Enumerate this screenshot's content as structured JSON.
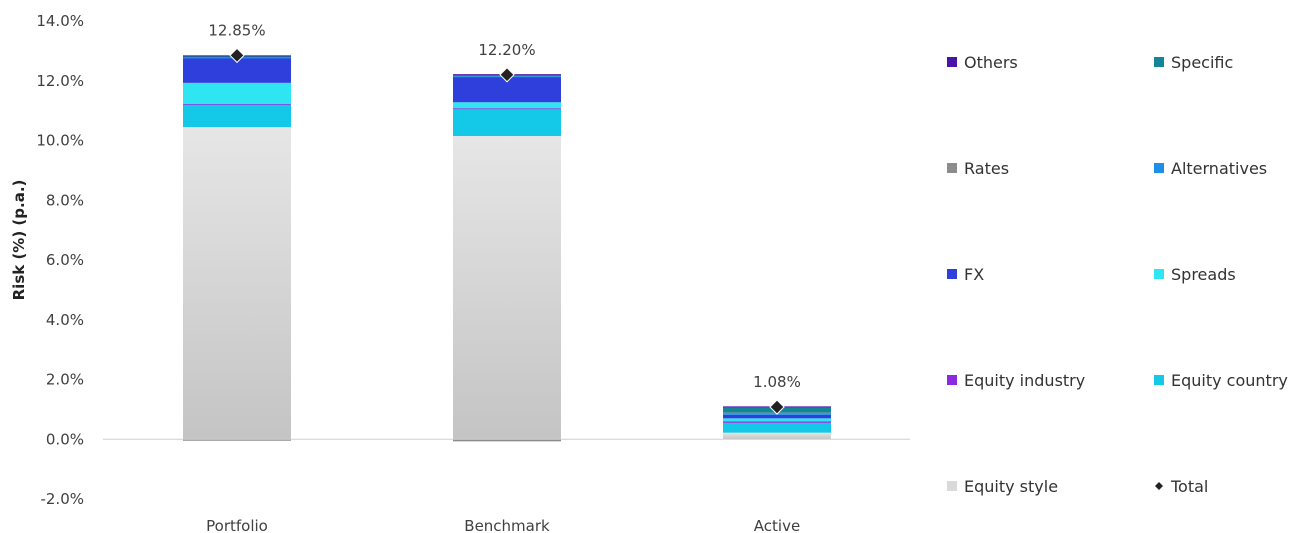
{
  "chart_data": {
    "type": "bar",
    "stacked": true,
    "categories": [
      "Portfolio",
      "Benchmark",
      "Active"
    ],
    "ylabel": "Risk (%) (p.a.)",
    "ylim": [
      -2.0,
      14.0
    ],
    "yticks": [
      "-2.0%",
      "0.0%",
      "2.0%",
      "4.0%",
      "6.0%",
      "8.0%",
      "10.0%",
      "12.0%",
      "14.0%"
    ],
    "grid": false,
    "legend_position": "right",
    "series": [
      {
        "name": "Equity style",
        "color": "#d9d9d9",
        "values": [
          10.45,
          10.15,
          0.22
        ]
      },
      {
        "name": "Equity country",
        "color": "#14c8e8",
        "values": [
          0.75,
          0.9,
          0.33
        ]
      },
      {
        "name": "Equity industry",
        "color": "#8a2be2",
        "values": [
          0.03,
          0.03,
          0.05
        ]
      },
      {
        "name": "Spreads",
        "color": "#2ee6f2",
        "values": [
          0.7,
          0.2,
          0.1
        ]
      },
      {
        "name": "FX",
        "color": "#2e3fdc",
        "values": [
          0.83,
          0.85,
          0.12
        ]
      },
      {
        "name": "Alternatives",
        "color": "#1e8fe8",
        "values": [
          0.02,
          0.02,
          0.05
        ]
      },
      {
        "name": "Rates",
        "color": "#8c8c8c",
        "values": [
          -0.05,
          -0.07,
          0.02
        ]
      },
      {
        "name": "Specific",
        "color": "#138597",
        "values": [
          0.05,
          0.05,
          0.18
        ]
      },
      {
        "name": "Others",
        "color": "#4a14a8",
        "values": [
          0.02,
          0.02,
          0.03
        ]
      }
    ],
    "total": {
      "name": "Total",
      "values": [
        12.85,
        12.2,
        1.08
      ],
      "labels": [
        "12.85%",
        "12.20%",
        "1.08%"
      ]
    },
    "legend": [
      {
        "name": "Others",
        "color": "#4a14a8",
        "marker": "square"
      },
      {
        "name": "Specific",
        "color": "#138597",
        "marker": "square"
      },
      {
        "name": "Rates",
        "color": "#8c8c8c",
        "marker": "square"
      },
      {
        "name": "Alternatives",
        "color": "#1e8fe8",
        "marker": "square"
      },
      {
        "name": "FX",
        "color": "#2e3fdc",
        "marker": "square"
      },
      {
        "name": "Spreads",
        "color": "#2ee6f2",
        "marker": "square"
      },
      {
        "name": "Equity industry",
        "color": "#8a2be2",
        "marker": "square"
      },
      {
        "name": "Equity country",
        "color": "#14c8e8",
        "marker": "square"
      },
      {
        "name": "Equity style",
        "color": "#d9d9d9",
        "marker": "square"
      },
      {
        "name": "Total",
        "color": "#222222",
        "marker": "diamond"
      }
    ]
  }
}
